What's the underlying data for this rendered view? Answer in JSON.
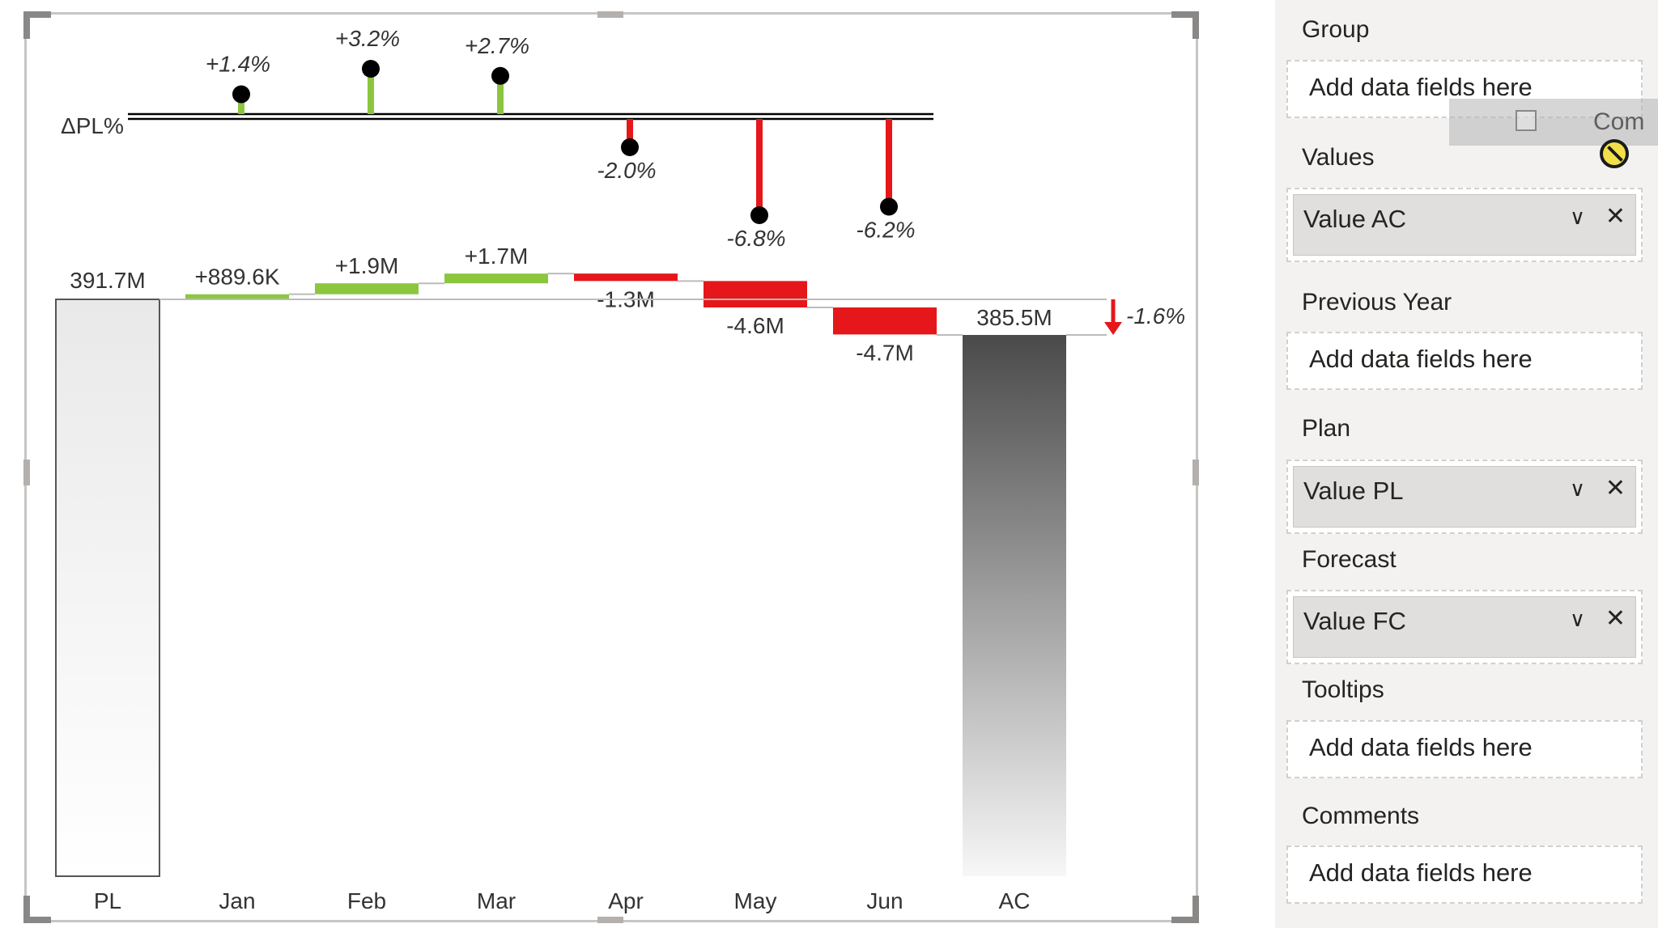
{
  "chart_data": {
    "type": "waterfall",
    "variance_row_label": "ΔPL%",
    "categories": [
      "Jan",
      "Feb",
      "Mar",
      "Apr",
      "May",
      "Jun"
    ],
    "variance_percent": [
      1.4,
      3.2,
      2.7,
      -2.0,
      -6.8,
      -6.2
    ],
    "variance_percent_labels": [
      "+1.4%",
      "+3.2%",
      "+2.7%",
      "-2.0%",
      "-6.8%",
      "-6.2%"
    ],
    "start": {
      "label": "PL",
      "value": 391.7,
      "value_label": "391.7M"
    },
    "end": {
      "label": "AC",
      "value": 385.5,
      "value_label": "385.5M"
    },
    "deltas": [
      0.8896,
      1.9,
      1.7,
      -1.3,
      -4.6,
      -4.7
    ],
    "delta_labels": [
      "+889.6K",
      "+1.9M",
      "+1.7M",
      "-1.3M",
      "-4.6M",
      "-4.7M"
    ],
    "total_variance_label": "-1.6%",
    "units": "M",
    "colors": {
      "positive": "#8cc63f",
      "negative": "#e5171b",
      "axis": "#000000"
    }
  },
  "panel": {
    "group_title": "Group",
    "group_placeholder": "Add data fields here",
    "values_title": "Values",
    "values_field": "Value AC",
    "previous_year_title": "Previous Year",
    "previous_year_placeholder": "Add data fields here",
    "plan_title": "Plan",
    "plan_field": "Value PL",
    "forecast_title": "Forecast",
    "forecast_field": "Value FC",
    "tooltips_title": "Tooltips",
    "tooltips_placeholder": "Add data fields here",
    "comments_title": "Comments",
    "comments_placeholder": "Add data fields here",
    "drag_text": "Com",
    "chevron_icon": "chevron-down-icon",
    "remove_icon": "close-icon"
  }
}
